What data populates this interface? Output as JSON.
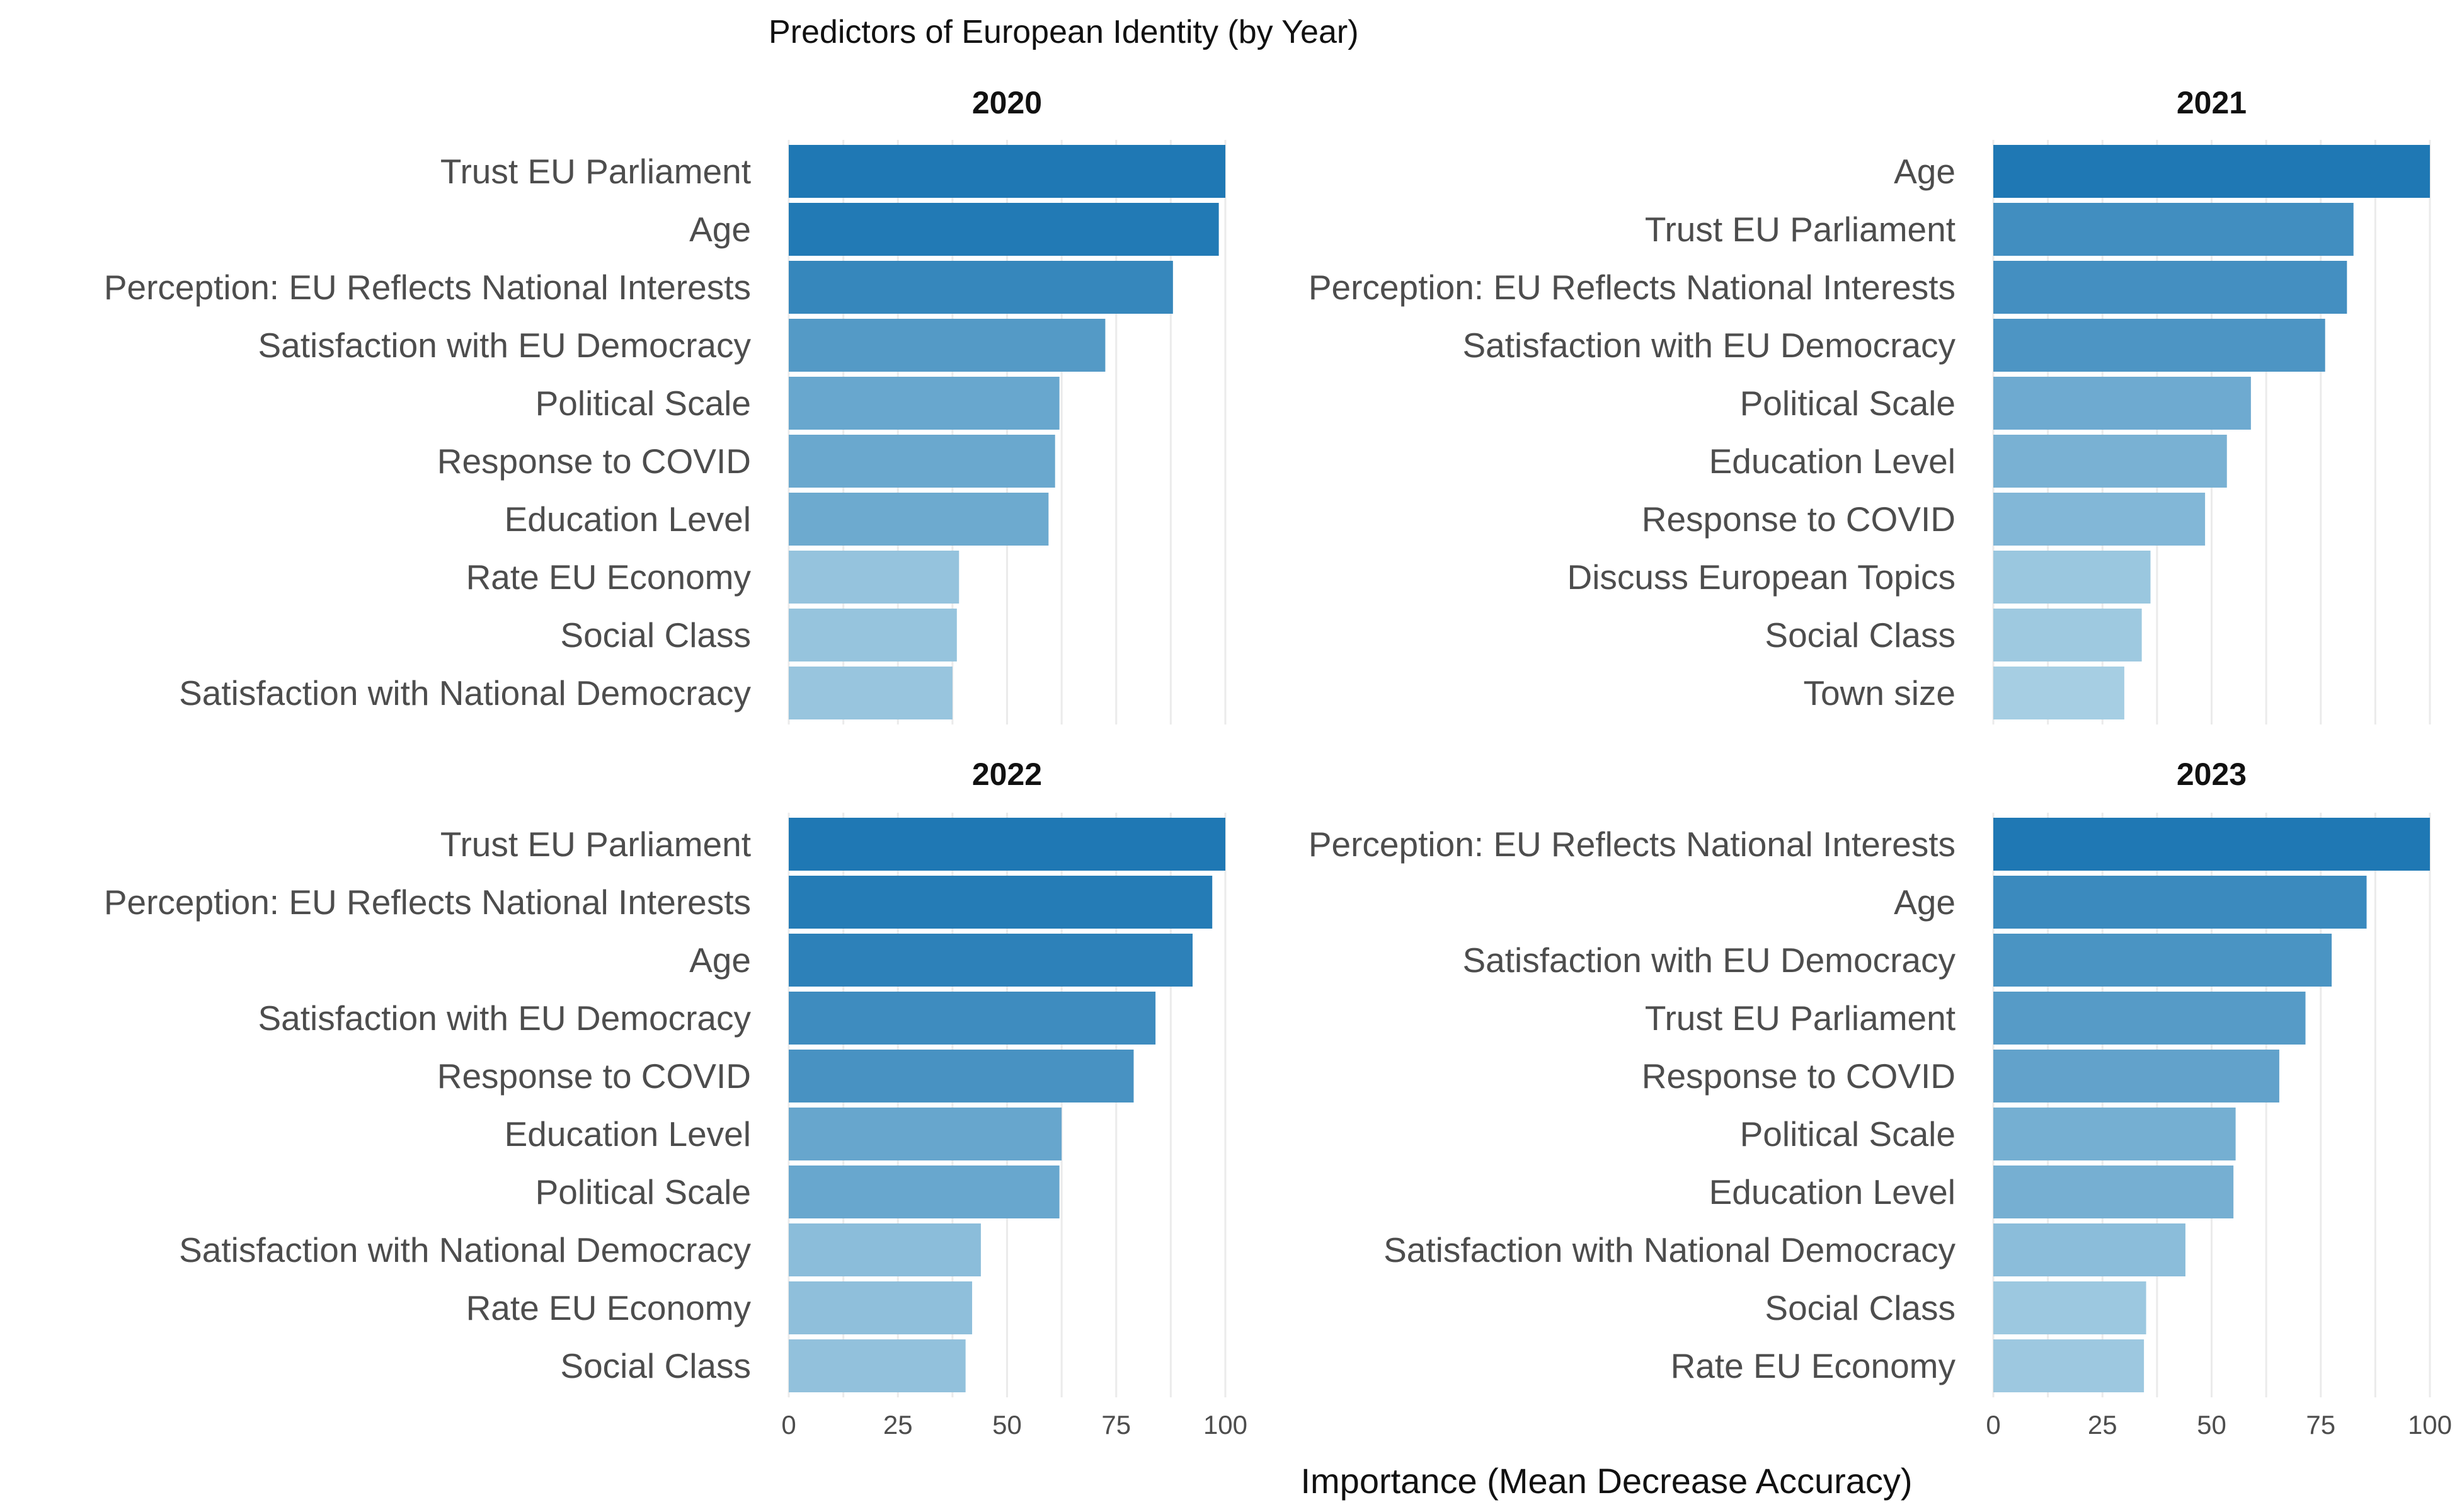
{
  "chart_data": {
    "type": "bar",
    "orientation": "horizontal",
    "title": "Predictors of European Identity (by Year)",
    "xlabel": "Importance (Mean Decrease Accuracy)",
    "xlim": [
      0,
      100
    ],
    "x_ticks": [
      0,
      25,
      50,
      75,
      100
    ],
    "grid": true,
    "color_scale": {
      "low": "#a6cee3",
      "high": "#1f78b4"
    },
    "panels": [
      {
        "year": "2020",
        "categories": [
          "Trust EU Parliament",
          "Age",
          "Perception: EU Reflects National Interests",
          "Satisfaction with EU Democracy",
          "Political Scale",
          "Response to COVID",
          "Education Level",
          "Rate EU Economy",
          "Social Class",
          "Satisfaction with National Democracy"
        ],
        "values": [
          100,
          98.5,
          88,
          72.5,
          62,
          61,
          59.5,
          39,
          38.5,
          37.5
        ]
      },
      {
        "year": "2021",
        "categories": [
          "Age",
          "Trust EU Parliament",
          "Perception: EU Reflects National Interests",
          "Satisfaction with EU Democracy",
          "Political Scale",
          "Education Level",
          "Response to COVID",
          "Discuss European Topics",
          "Social Class",
          "Town size"
        ],
        "values": [
          100,
          82.5,
          81,
          76,
          59,
          53.5,
          48.5,
          36,
          34,
          30
        ]
      },
      {
        "year": "2022",
        "categories": [
          "Trust EU Parliament",
          "Perception: EU Reflects National Interests",
          "Age",
          "Satisfaction with EU Democracy",
          "Response to COVID",
          "Education Level",
          "Political Scale",
          "Satisfaction with National Democracy",
          "Rate EU Economy",
          "Social Class"
        ],
        "values": [
          100,
          97,
          92.5,
          84,
          79,
          62.5,
          62,
          44,
          42,
          40.5
        ]
      },
      {
        "year": "2023",
        "categories": [
          "Perception: EU Reflects National Interests",
          "Age",
          "Satisfaction with EU Democracy",
          "Trust EU Parliament",
          "Response to COVID",
          "Political Scale",
          "Education Level",
          "Satisfaction with National Democracy",
          "Social Class",
          "Rate EU Economy"
        ],
        "values": [
          100,
          85.5,
          77.5,
          71.5,
          65.5,
          55.5,
          55,
          44,
          35,
          34.5
        ]
      }
    ]
  }
}
